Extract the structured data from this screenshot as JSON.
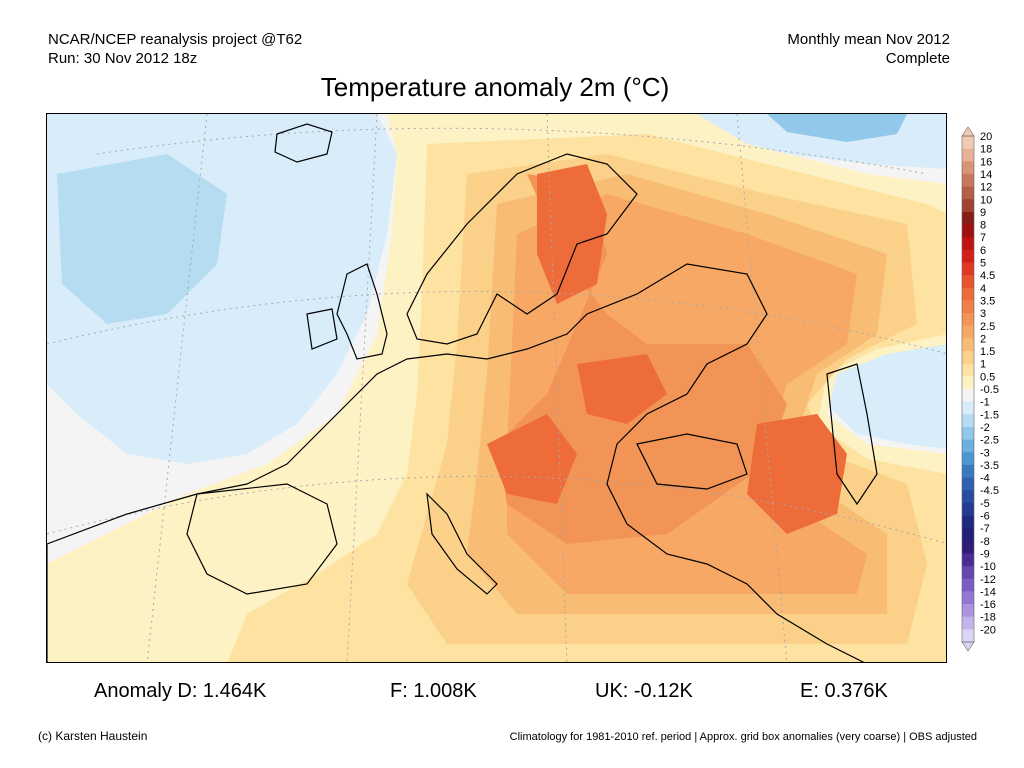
{
  "header": {
    "left_line1": "NCAR/NCEP reanalysis project @T62",
    "left_line2": "Run: 30 Nov 2012 18z",
    "right_line1": "Monthly mean Nov 2012",
    "right_line2": "Complete"
  },
  "title": "Temperature anomaly 2m (°C)",
  "legend": {
    "labels": [
      "20",
      "18",
      "16",
      "14",
      "12",
      "10",
      "9",
      "8",
      "7",
      "6",
      "5",
      "4.5",
      "4",
      "3.5",
      "3",
      "2.5",
      "2",
      "1.5",
      "1",
      "0.5",
      "-0.5",
      "-1",
      "-1.5",
      "-2",
      "-2.5",
      "-3",
      "-3.5",
      "-4",
      "-4.5",
      "-5",
      "-6",
      "-7",
      "-8",
      "-9",
      "-10",
      "-12",
      "-14",
      "-16",
      "-18",
      "-20"
    ],
    "colors": [
      "#f3cbb4",
      "#e8b096",
      "#d99478",
      "#c8785e",
      "#b55e48",
      "#9f4232",
      "#8a1c18",
      "#a01010",
      "#be1414",
      "#d42018",
      "#e23a22",
      "#e8542e",
      "#ee6c3a",
      "#f08048",
      "#f29456",
      "#f6a864",
      "#f8bc74",
      "#fbd088",
      "#fde2a2",
      "#fdf2c4",
      "#f4f4f4",
      "#d8ecfa",
      "#b6dcf2",
      "#92c8ea",
      "#6cb0e0",
      "#4c96d2",
      "#3a78c0",
      "#3060b0",
      "#2a4ca0",
      "#243a92",
      "#1e2a82",
      "#22207a",
      "#301c78",
      "#4a2c94",
      "#6448b0",
      "#7a5cc4",
      "#9278d4",
      "#aa94e0",
      "#c4b4ec",
      "#dcd4f6"
    ]
  },
  "stats": {
    "d": "Anomaly D: 1.464K",
    "f": "F: 1.008K",
    "uk": "UK: -0.12K",
    "e": "E: 0.376K"
  },
  "footer": {
    "credit": "(c) Karsten Haustein",
    "note": "Climatology for 1981-2010 ref. period | Approx. grid box anomalies (very coarse) | OBS adjusted"
  },
  "map_colors": {
    "land_neutral": "#f4f4f4",
    "cold_light": "#d8ecfa",
    "cold_mid": "#b6dcf2",
    "cold_deep": "#92c8ea",
    "warm_1": "#fdf2c4",
    "warm_2": "#fde2a2",
    "warm_3": "#fbd088",
    "warm_4": "#f8bc74",
    "warm_5": "#f6a864",
    "warm_6": "#f29456",
    "warm_7": "#ee6c3a"
  }
}
